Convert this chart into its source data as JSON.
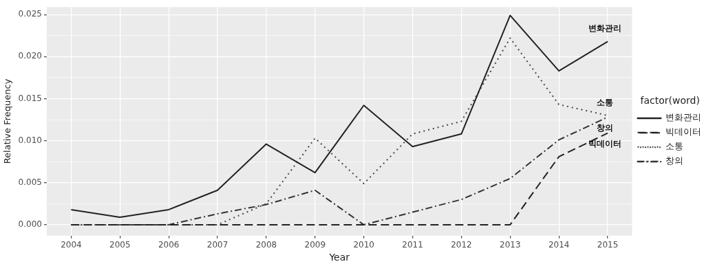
{
  "chart_data": {
    "type": "line",
    "xlabel": "Year",
    "ylabel": "Relative Frequency",
    "legend_title": "factor(word)",
    "categories": [
      "2004",
      "2005",
      "2006",
      "2007",
      "2008",
      "2009",
      "2010",
      "2011",
      "2012",
      "2013",
      "2014",
      "2015"
    ],
    "series": [
      {
        "name": "변화관리",
        "color": "#222222",
        "line_style": "solid",
        "values": [
          0.0018,
          0.0009,
          0.0018,
          0.0041,
          0.0096,
          0.0062,
          0.0142,
          0.0093,
          0.0108,
          0.0249,
          0.0183,
          0.0218
        ]
      },
      {
        "name": "빅데이터",
        "color": "#222222",
        "line_style": "dashed",
        "values": [
          0,
          0,
          0,
          0,
          0,
          0,
          0,
          0,
          0,
          0,
          0.0081,
          0.0109
        ]
      },
      {
        "name": "소통",
        "color": "#444444",
        "line_style": "dotted",
        "values": [
          0,
          0,
          0,
          0,
          0.0025,
          0.0103,
          0.0049,
          0.0108,
          0.0123,
          0.0222,
          0.0143,
          0.013
        ]
      },
      {
        "name": "창의",
        "color": "#333333",
        "line_style": "dashdot",
        "values": [
          0,
          0,
          0,
          0.0013,
          0.0024,
          0.0041,
          0,
          0.0015,
          0.003,
          0.0055,
          0.0101,
          0.0128
        ]
      }
    ],
    "ylim": [
      -0.0013,
      0.0259
    ],
    "yticks": [
      {
        "value": 0,
        "label": "0.000"
      },
      {
        "value": 0.0025,
        "label": null
      },
      {
        "value": 0.005,
        "label": "0.005"
      },
      {
        "value": 0.0075,
        "label": null
      },
      {
        "value": 0.01,
        "label": "0.010"
      },
      {
        "value": 0.0125,
        "label": null
      },
      {
        "value": 0.015,
        "label": "0.015"
      },
      {
        "value": 0.0175,
        "label": null
      },
      {
        "value": 0.02,
        "label": "0.020"
      },
      {
        "value": 0.0225,
        "label": null
      },
      {
        "value": 0.025,
        "label": "0.025"
      }
    ],
    "grid": true,
    "legend": "right",
    "marker": "none",
    "annotations": [
      {
        "text": "변화관리",
        "x": "2015",
        "y": 0.0218
      },
      {
        "text": "소통",
        "x": "2015",
        "y": 0.013
      },
      {
        "text": "창의",
        "x": "2015",
        "y": 0.0128
      },
      {
        "text": "빅데이터",
        "x": "2015",
        "y": 0.0109
      }
    ]
  }
}
